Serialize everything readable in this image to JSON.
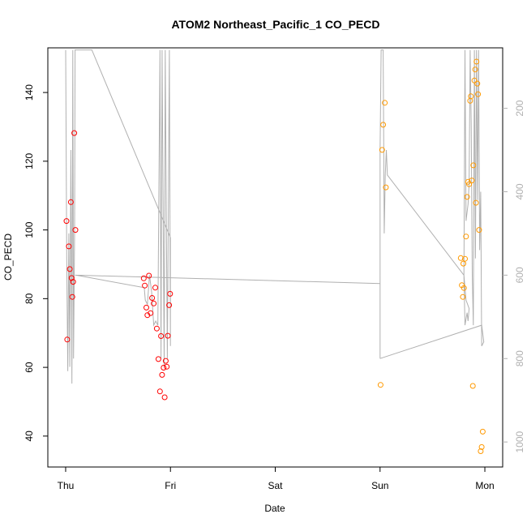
{
  "chart_data": {
    "type": "scatter",
    "title": "ATOM2 Northeast_Pacific_1 CO_PECD",
    "xlabel": "Date",
    "ylabel": "CO_PECD",
    "x_unit": "day (0 = Thu)",
    "xlim": [
      -0.17,
      4.17
    ],
    "ylim": [
      31,
      153
    ],
    "y_ticks": [
      40,
      60,
      80,
      100,
      120,
      140
    ],
    "x_ticks": [
      {
        "value": 0,
        "label": "Thu"
      },
      {
        "value": 1,
        "label": "Fri"
      },
      {
        "value": 2,
        "label": "Sat"
      },
      {
        "value": 3,
        "label": "Sun"
      },
      {
        "value": 4,
        "label": "Mon"
      }
    ],
    "y2": {
      "ylim": [
        1060,
        55
      ],
      "ticks": [
        200,
        400,
        600,
        800,
        1000
      ],
      "color": "#b0b0b0"
    },
    "series": [
      {
        "color": "#ff0000",
        "points": [
          {
            "x": 0.008,
            "y": 102.6
          },
          {
            "x": 0.015,
            "y": 68.1
          },
          {
            "x": 0.03,
            "y": 95.2
          },
          {
            "x": 0.04,
            "y": 88.6
          },
          {
            "x": 0.05,
            "y": 108.1
          },
          {
            "x": 0.057,
            "y": 86.0
          },
          {
            "x": 0.064,
            "y": 80.5
          },
          {
            "x": 0.071,
            "y": 84.9
          },
          {
            "x": 0.082,
            "y": 128.2
          },
          {
            "x": 0.093,
            "y": 100.0
          },
          {
            "x": 0.745,
            "y": 85.9
          },
          {
            "x": 0.755,
            "y": 83.8
          },
          {
            "x": 0.77,
            "y": 77.4
          },
          {
            "x": 0.78,
            "y": 75.2
          },
          {
            "x": 0.795,
            "y": 86.7
          },
          {
            "x": 0.81,
            "y": 75.8
          },
          {
            "x": 0.825,
            "y": 80.2
          },
          {
            "x": 0.84,
            "y": 78.6
          },
          {
            "x": 0.855,
            "y": 83.2
          },
          {
            "x": 0.87,
            "y": 71.3
          },
          {
            "x": 0.885,
            "y": 62.4
          },
          {
            "x": 0.9,
            "y": 53.0
          },
          {
            "x": 0.91,
            "y": 69.1
          },
          {
            "x": 0.92,
            "y": 57.8
          },
          {
            "x": 0.935,
            "y": 59.9
          },
          {
            "x": 0.945,
            "y": 51.3
          },
          {
            "x": 0.955,
            "y": 61.9
          },
          {
            "x": 0.965,
            "y": 60.2
          },
          {
            "x": 0.975,
            "y": 69.2
          },
          {
            "x": 0.987,
            "y": 78.1
          },
          {
            "x": 0.997,
            "y": 81.4
          }
        ]
      },
      {
        "color": "#ff9900",
        "points": [
          {
            "x": 3.005,
            "y": 54.9
          },
          {
            "x": 3.02,
            "y": 123.3
          },
          {
            "x": 3.03,
            "y": 130.6
          },
          {
            "x": 3.045,
            "y": 137.0
          },
          {
            "x": 3.055,
            "y": 112.4
          },
          {
            "x": 3.77,
            "y": 91.8
          },
          {
            "x": 3.78,
            "y": 83.9
          },
          {
            "x": 3.79,
            "y": 80.5
          },
          {
            "x": 3.795,
            "y": 90.2
          },
          {
            "x": 3.8,
            "y": 83.1
          },
          {
            "x": 3.81,
            "y": 91.6
          },
          {
            "x": 3.82,
            "y": 98.1
          },
          {
            "x": 3.83,
            "y": 109.6
          },
          {
            "x": 3.84,
            "y": 114.0
          },
          {
            "x": 3.85,
            "y": 113.3
          },
          {
            "x": 3.86,
            "y": 137.6
          },
          {
            "x": 3.867,
            "y": 138.9
          },
          {
            "x": 3.875,
            "y": 114.4
          },
          {
            "x": 3.885,
            "y": 54.6
          },
          {
            "x": 3.89,
            "y": 118.8
          },
          {
            "x": 3.9,
            "y": 143.5
          },
          {
            "x": 3.908,
            "y": 146.7
          },
          {
            "x": 3.915,
            "y": 107.9
          },
          {
            "x": 3.92,
            "y": 149.0
          },
          {
            "x": 3.928,
            "y": 142.6
          },
          {
            "x": 3.935,
            "y": 139.5
          },
          {
            "x": 3.945,
            "y": 100.0
          },
          {
            "x": 3.96,
            "y": 35.6
          },
          {
            "x": 3.97,
            "y": 36.8
          },
          {
            "x": 3.98,
            "y": 41.3
          }
        ]
      }
    ],
    "y2_line": [
      [
        0.0,
        60
      ],
      [
        0.01,
        560
      ],
      [
        0.02,
        830
      ],
      [
        0.03,
        500
      ],
      [
        0.04,
        820
      ],
      [
        0.05,
        300
      ],
      [
        0.06,
        860
      ],
      [
        0.068,
        60
      ],
      [
        0.075,
        800
      ],
      [
        0.085,
        500
      ],
      [
        0.09,
        60
      ],
      [
        0.1,
        60
      ],
      [
        0.25,
        60
      ],
      [
        1.0,
        510
      ],
      [
        1.0,
        770
      ],
      [
        0.99,
        60
      ],
      [
        0.97,
        800
      ],
      [
        0.96,
        450
      ],
      [
        0.95,
        60
      ],
      [
        0.94,
        820
      ],
      [
        0.92,
        60
      ],
      [
        0.91,
        800
      ],
      [
        0.9,
        60
      ],
      [
        0.88,
        720
      ],
      [
        0.86,
        710
      ],
      [
        0.84,
        720
      ],
      [
        0.82,
        640
      ],
      [
        0.8,
        600
      ],
      [
        0.78,
        670
      ],
      [
        0.76,
        660
      ],
      [
        0.75,
        630
      ],
      [
        0.1,
        600
      ],
      [
        0.09,
        600
      ],
      [
        0.1,
        600
      ],
      [
        3.0,
        620
      ],
      [
        3.0,
        800
      ],
      [
        3.0,
        600
      ],
      [
        3.0,
        300
      ],
      [
        3.01,
        60
      ],
      [
        3.03,
        60
      ],
      [
        3.04,
        500
      ],
      [
        3.05,
        360
      ],
      [
        3.06,
        300
      ],
      [
        3.07,
        360
      ],
      [
        3.8,
        600
      ],
      [
        3.82,
        660
      ],
      [
        3.85,
        680
      ],
      [
        3.84,
        710
      ],
      [
        3.83,
        690
      ],
      [
        3.81,
        720
      ],
      [
        3.8,
        600
      ],
      [
        3.81,
        60
      ],
      [
        3.82,
        470
      ],
      [
        3.84,
        430
      ],
      [
        3.85,
        380
      ],
      [
        3.86,
        60
      ],
      [
        3.87,
        240
      ],
      [
        3.88,
        600
      ],
      [
        3.89,
        720
      ],
      [
        3.9,
        60
      ],
      [
        3.91,
        560
      ],
      [
        3.92,
        60
      ],
      [
        3.93,
        420
      ],
      [
        3.94,
        60
      ],
      [
        3.95,
        540
      ],
      [
        3.96,
        400
      ],
      [
        3.97,
        770
      ],
      [
        3.99,
        760
      ],
      [
        3.97,
        720
      ],
      [
        3.0,
        800
      ]
    ],
    "line_color": "#b0b0b0"
  }
}
